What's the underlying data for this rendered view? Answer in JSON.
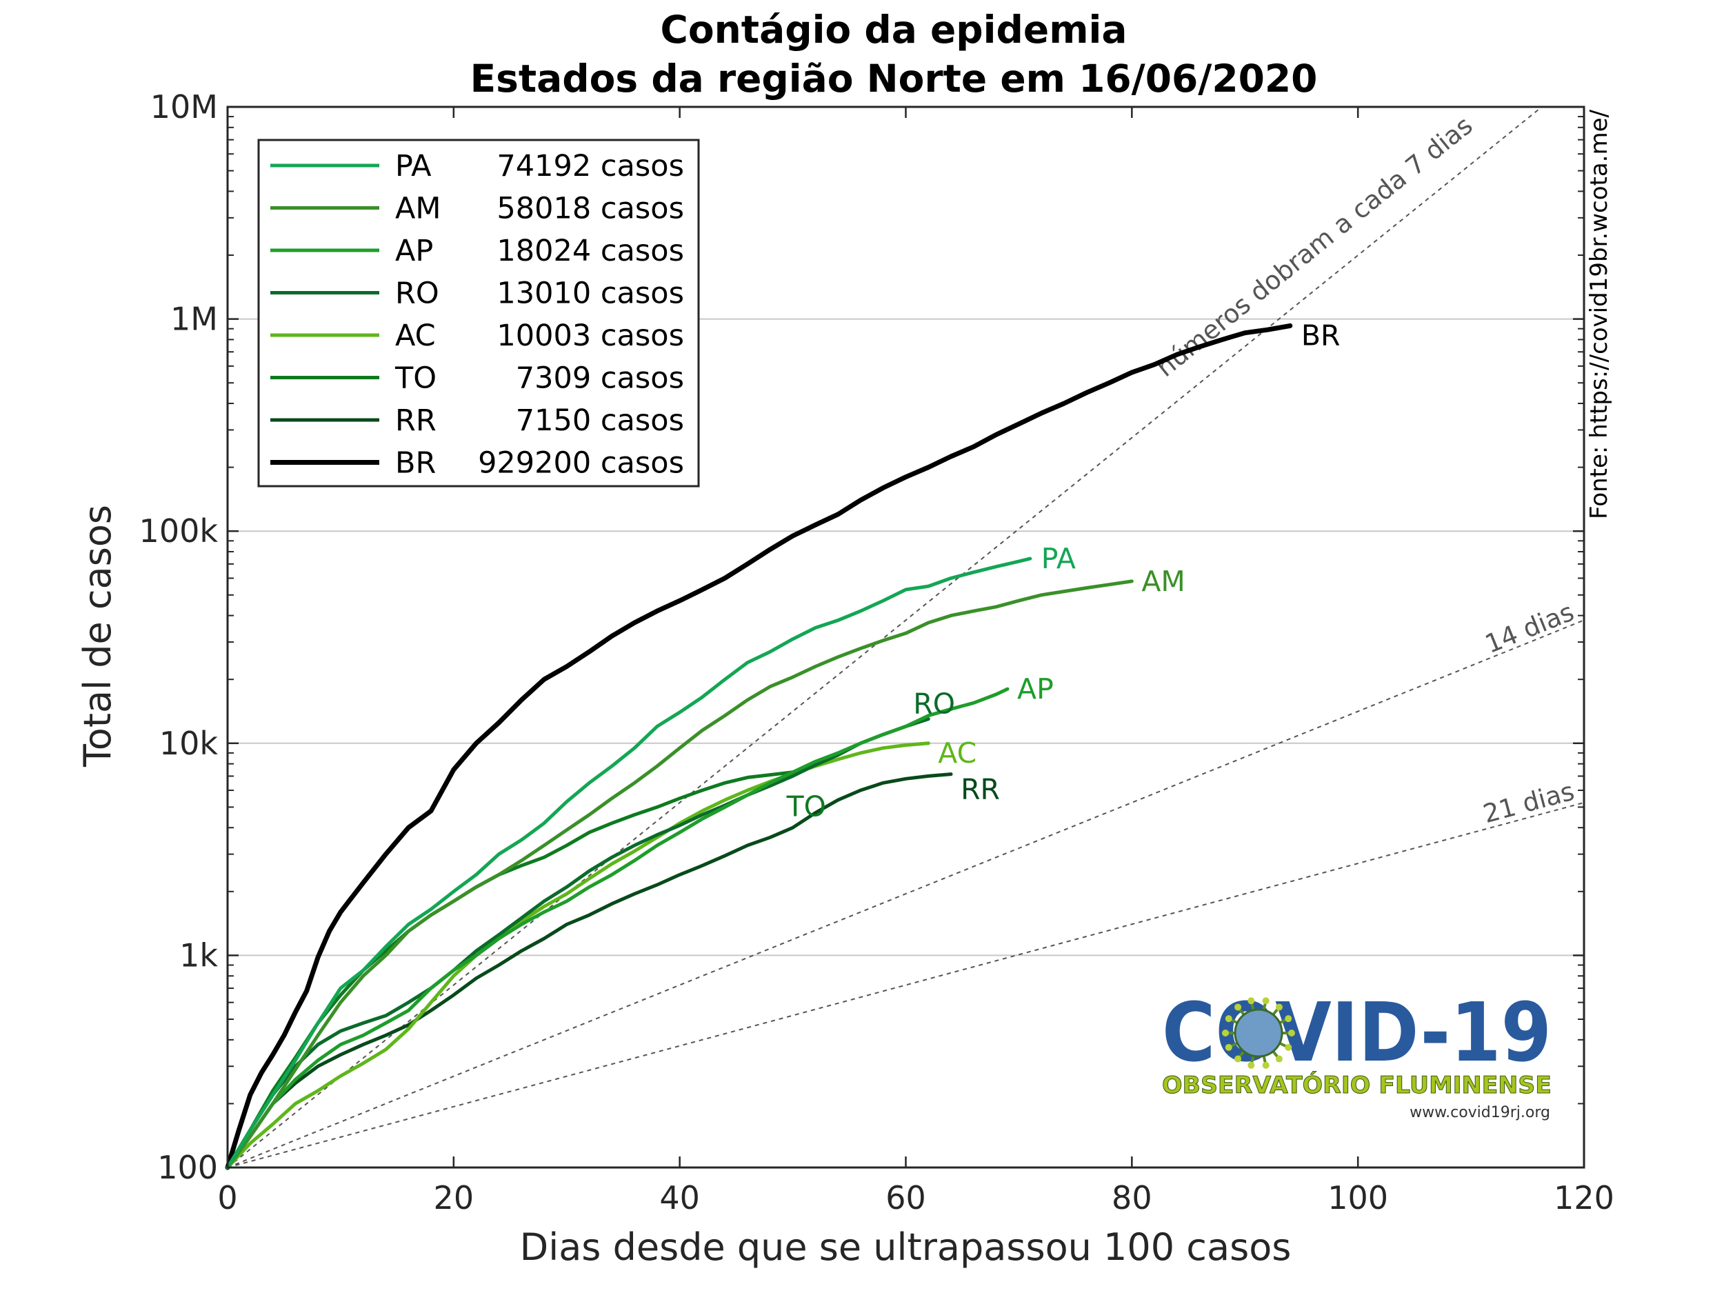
{
  "chart_data": {
    "type": "line",
    "title": "Contágio da epidemia",
    "subtitle": "Estados da região Norte em 16/06/2020",
    "xlabel": "Dias desde que se ultrapassou 100 casos",
    "ylabel": "Total de casos",
    "xlim": [
      0,
      120
    ],
    "ylim": [
      100,
      10000000
    ],
    "yscale": "log",
    "grid": "horizontal",
    "legend_position": "top-left",
    "x_ticks": [
      0,
      20,
      40,
      60,
      80,
      100,
      120
    ],
    "y_ticks": [
      100,
      1000,
      10000,
      100000,
      1000000,
      10000000
    ],
    "y_tick_labels": [
      "100",
      "1k",
      "10k",
      "100k",
      "1M",
      "10M"
    ],
    "source_text": "Fonte: https://covid19br.wcota.me/",
    "series": [
      {
        "name": "PA",
        "legend_value": "74192 casos",
        "color": "#13a654",
        "end_label": "PA",
        "points": [
          [
            0,
            100
          ],
          [
            2,
            150
          ],
          [
            4,
            220
          ],
          [
            6,
            320
          ],
          [
            8,
            480
          ],
          [
            10,
            700
          ],
          [
            12,
            850
          ],
          [
            14,
            1100
          ],
          [
            16,
            1400
          ],
          [
            18,
            1650
          ],
          [
            20,
            2000
          ],
          [
            22,
            2400
          ],
          [
            24,
            3000
          ],
          [
            26,
            3500
          ],
          [
            28,
            4200
          ],
          [
            30,
            5300
          ],
          [
            32,
            6500
          ],
          [
            34,
            7800
          ],
          [
            36,
            9500
          ],
          [
            38,
            12000
          ],
          [
            40,
            14000
          ],
          [
            42,
            16500
          ],
          [
            44,
            20000
          ],
          [
            46,
            24000
          ],
          [
            48,
            27000
          ],
          [
            50,
            31000
          ],
          [
            52,
            35000
          ],
          [
            54,
            38000
          ],
          [
            56,
            42000
          ],
          [
            58,
            47000
          ],
          [
            60,
            53000
          ],
          [
            62,
            55000
          ],
          [
            64,
            60000
          ],
          [
            66,
            64000
          ],
          [
            68,
            68000
          ],
          [
            70,
            72000
          ],
          [
            71,
            74192
          ]
        ]
      },
      {
        "name": "AM",
        "legend_value": "58018 casos",
        "color": "#3a9028",
        "end_label": "AM",
        "points": [
          [
            0,
            100
          ],
          [
            2,
            140
          ],
          [
            4,
            200
          ],
          [
            6,
            290
          ],
          [
            8,
            420
          ],
          [
            10,
            600
          ],
          [
            12,
            800
          ],
          [
            14,
            1000
          ],
          [
            16,
            1300
          ],
          [
            18,
            1550
          ],
          [
            20,
            1800
          ],
          [
            22,
            2100
          ],
          [
            24,
            2400
          ],
          [
            26,
            2800
          ],
          [
            28,
            3300
          ],
          [
            30,
            3900
          ],
          [
            32,
            4600
          ],
          [
            34,
            5500
          ],
          [
            36,
            6500
          ],
          [
            38,
            7800
          ],
          [
            40,
            9500
          ],
          [
            42,
            11500
          ],
          [
            44,
            13500
          ],
          [
            46,
            16000
          ],
          [
            48,
            18500
          ],
          [
            50,
            20500
          ],
          [
            52,
            23000
          ],
          [
            54,
            25500
          ],
          [
            56,
            28000
          ],
          [
            58,
            30500
          ],
          [
            60,
            33000
          ],
          [
            62,
            37000
          ],
          [
            64,
            40000
          ],
          [
            66,
            42000
          ],
          [
            68,
            44000
          ],
          [
            70,
            47000
          ],
          [
            72,
            50000
          ],
          [
            74,
            52000
          ],
          [
            76,
            54000
          ],
          [
            78,
            56000
          ],
          [
            80,
            58018
          ]
        ]
      },
      {
        "name": "AP",
        "legend_value": "18024 casos",
        "color": "#1e9d2a",
        "end_label": "AP",
        "points": [
          [
            0,
            100
          ],
          [
            2,
            140
          ],
          [
            4,
            200
          ],
          [
            6,
            260
          ],
          [
            8,
            320
          ],
          [
            10,
            380
          ],
          [
            12,
            420
          ],
          [
            14,
            480
          ],
          [
            16,
            550
          ],
          [
            18,
            700
          ],
          [
            20,
            850
          ],
          [
            22,
            1000
          ],
          [
            24,
            1200
          ],
          [
            26,
            1400
          ],
          [
            28,
            1600
          ],
          [
            30,
            1800
          ],
          [
            32,
            2100
          ],
          [
            34,
            2400
          ],
          [
            36,
            2800
          ],
          [
            38,
            3300
          ],
          [
            40,
            3800
          ],
          [
            42,
            4400
          ],
          [
            44,
            5000
          ],
          [
            46,
            5700
          ],
          [
            48,
            6500
          ],
          [
            50,
            7300
          ],
          [
            52,
            8200
          ],
          [
            54,
            9000
          ],
          [
            56,
            10000
          ],
          [
            58,
            11000
          ],
          [
            60,
            12000
          ],
          [
            62,
            13500
          ],
          [
            64,
            14500
          ],
          [
            66,
            15500
          ],
          [
            68,
            17000
          ],
          [
            69,
            18024
          ]
        ]
      },
      {
        "name": "RO",
        "legend_value": "13010 casos",
        "color": "#0b6b2a",
        "end_label": "RO",
        "points": [
          [
            0,
            100
          ],
          [
            2,
            150
          ],
          [
            4,
            220
          ],
          [
            6,
            300
          ],
          [
            8,
            380
          ],
          [
            10,
            440
          ],
          [
            12,
            480
          ],
          [
            14,
            520
          ],
          [
            16,
            600
          ],
          [
            18,
            700
          ],
          [
            20,
            850
          ],
          [
            22,
            1050
          ],
          [
            24,
            1250
          ],
          [
            26,
            1500
          ],
          [
            28,
            1800
          ],
          [
            30,
            2100
          ],
          [
            32,
            2500
          ],
          [
            34,
            2900
          ],
          [
            36,
            3300
          ],
          [
            38,
            3700
          ],
          [
            40,
            4100
          ],
          [
            42,
            4600
          ],
          [
            44,
            5100
          ],
          [
            46,
            5700
          ],
          [
            48,
            6300
          ],
          [
            50,
            7000
          ],
          [
            52,
            7900
          ],
          [
            54,
            8800
          ],
          [
            56,
            10000
          ],
          [
            58,
            11000
          ],
          [
            60,
            12000
          ],
          [
            62,
            13010
          ]
        ]
      },
      {
        "name": "AC",
        "legend_value": "10003 casos",
        "color": "#5fb61a",
        "end_label": "AC",
        "points": [
          [
            0,
            100
          ],
          [
            2,
            130
          ],
          [
            4,
            160
          ],
          [
            6,
            200
          ],
          [
            8,
            230
          ],
          [
            10,
            270
          ],
          [
            12,
            310
          ],
          [
            14,
            360
          ],
          [
            16,
            450
          ],
          [
            18,
            600
          ],
          [
            20,
            800
          ],
          [
            22,
            1000
          ],
          [
            24,
            1200
          ],
          [
            26,
            1450
          ],
          [
            28,
            1700
          ],
          [
            30,
            1950
          ],
          [
            32,
            2300
          ],
          [
            34,
            2700
          ],
          [
            36,
            3100
          ],
          [
            38,
            3600
          ],
          [
            40,
            4200
          ],
          [
            42,
            4800
          ],
          [
            44,
            5400
          ],
          [
            46,
            6000
          ],
          [
            48,
            6600
          ],
          [
            50,
            7200
          ],
          [
            52,
            7800
          ],
          [
            54,
            8400
          ],
          [
            56,
            9000
          ],
          [
            58,
            9500
          ],
          [
            60,
            9800
          ],
          [
            62,
            10003
          ]
        ]
      },
      {
        "name": "TO",
        "legend_value": "7309 casos",
        "color": "#0e7a1f",
        "end_label": "TO",
        "points": [
          [
            0,
            100
          ],
          [
            2,
            150
          ],
          [
            4,
            230
          ],
          [
            6,
            330
          ],
          [
            8,
            480
          ],
          [
            10,
            650
          ],
          [
            12,
            850
          ],
          [
            14,
            1050
          ],
          [
            16,
            1300
          ],
          [
            18,
            1550
          ],
          [
            20,
            1800
          ],
          [
            22,
            2100
          ],
          [
            24,
            2400
          ],
          [
            26,
            2650
          ],
          [
            28,
            2900
          ],
          [
            30,
            3300
          ],
          [
            32,
            3800
          ],
          [
            34,
            4200
          ],
          [
            36,
            4600
          ],
          [
            38,
            5000
          ],
          [
            40,
            5500
          ],
          [
            42,
            6000
          ],
          [
            44,
            6500
          ],
          [
            46,
            6900
          ],
          [
            48,
            7100
          ],
          [
            50,
            7309
          ]
        ]
      },
      {
        "name": "RR",
        "legend_value": "7150 casos",
        "color": "#084a1b",
        "end_label": "RR",
        "points": [
          [
            0,
            100
          ],
          [
            2,
            140
          ],
          [
            4,
            200
          ],
          [
            6,
            250
          ],
          [
            8,
            300
          ],
          [
            10,
            340
          ],
          [
            12,
            380
          ],
          [
            14,
            420
          ],
          [
            16,
            470
          ],
          [
            18,
            550
          ],
          [
            20,
            650
          ],
          [
            22,
            780
          ],
          [
            24,
            900
          ],
          [
            26,
            1050
          ],
          [
            28,
            1200
          ],
          [
            30,
            1400
          ],
          [
            32,
            1550
          ],
          [
            34,
            1750
          ],
          [
            36,
            1950
          ],
          [
            38,
            2150
          ],
          [
            40,
            2400
          ],
          [
            42,
            2650
          ],
          [
            44,
            2950
          ],
          [
            46,
            3300
          ],
          [
            48,
            3600
          ],
          [
            50,
            4000
          ],
          [
            52,
            4700
          ],
          [
            54,
            5400
          ],
          [
            56,
            6000
          ],
          [
            58,
            6500
          ],
          [
            60,
            6800
          ],
          [
            62,
            7000
          ],
          [
            64,
            7150
          ]
        ]
      },
      {
        "name": "BR",
        "legend_value": "929200 casos",
        "color": "#000000",
        "end_label": "BR",
        "points": [
          [
            0,
            100
          ],
          [
            1,
            150
          ],
          [
            2,
            220
          ],
          [
            3,
            280
          ],
          [
            4,
            340
          ],
          [
            5,
            420
          ],
          [
            6,
            540
          ],
          [
            7,
            680
          ],
          [
            8,
            980
          ],
          [
            9,
            1300
          ],
          [
            10,
            1600
          ],
          [
            12,
            2200
          ],
          [
            14,
            3000
          ],
          [
            16,
            4000
          ],
          [
            18,
            4800
          ],
          [
            20,
            7500
          ],
          [
            22,
            10000
          ],
          [
            24,
            12500
          ],
          [
            26,
            16000
          ],
          [
            28,
            20000
          ],
          [
            30,
            23000
          ],
          [
            32,
            27000
          ],
          [
            34,
            32000
          ],
          [
            36,
            37000
          ],
          [
            38,
            42000
          ],
          [
            40,
            47000
          ],
          [
            42,
            53000
          ],
          [
            44,
            60000
          ],
          [
            46,
            70000
          ],
          [
            48,
            82000
          ],
          [
            50,
            95000
          ],
          [
            52,
            107000
          ],
          [
            54,
            120000
          ],
          [
            56,
            140000
          ],
          [
            58,
            160000
          ],
          [
            60,
            180000
          ],
          [
            62,
            200000
          ],
          [
            64,
            225000
          ],
          [
            66,
            250000
          ],
          [
            68,
            285000
          ],
          [
            70,
            320000
          ],
          [
            72,
            360000
          ],
          [
            74,
            400000
          ],
          [
            76,
            450000
          ],
          [
            78,
            500000
          ],
          [
            80,
            560000
          ],
          [
            82,
            610000
          ],
          [
            84,
            680000
          ],
          [
            86,
            740000
          ],
          [
            88,
            800000
          ],
          [
            90,
            860000
          ],
          [
            92,
            890000
          ],
          [
            94,
            929200
          ]
        ]
      }
    ],
    "reference_lines": [
      {
        "label": "números dobram a cada 7 dias",
        "doubling_days": 7
      },
      {
        "label": "14 dias",
        "doubling_days": 14
      },
      {
        "label": "21 dias",
        "doubling_days": 21
      }
    ]
  },
  "logo": {
    "title": "COVID-19",
    "subtitle": "OBSERVATÓRIO FLUMINENSE",
    "url": "www.covid19rj.org"
  }
}
